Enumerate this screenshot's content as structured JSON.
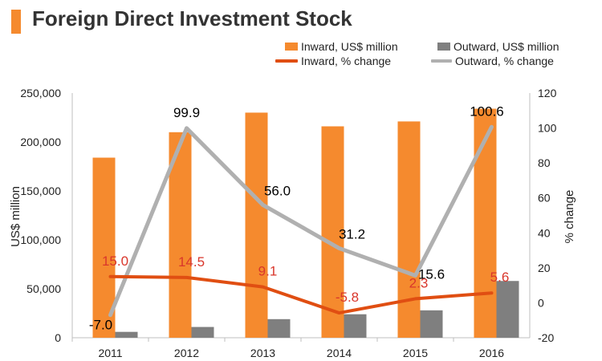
{
  "header": {
    "title": "Foreign Direct Investment Stock"
  },
  "colors": {
    "accent": "#F58A2E",
    "inward_bar": "#F58A2E",
    "outward_bar": "#7F7F7F",
    "inward_line": "#E04E12",
    "outward_line": "#B0B0B0",
    "inward_label": "#D9362B",
    "outward_label": "#000000"
  },
  "legend": {
    "inward_bar": "Inward, US$ million",
    "outward_bar": "Outward, US$ million",
    "inward_line": "Inward, % change",
    "outward_line": "Outward, % change"
  },
  "chart_data": {
    "type": "bar",
    "categories": [
      "2011",
      "2012",
      "2013",
      "2014",
      "2015",
      "2016"
    ],
    "series": [
      {
        "name": "Inward, US$ million",
        "type": "bar",
        "axis": "left",
        "values": [
          184000,
          210000,
          230000,
          216000,
          221000,
          234000
        ]
      },
      {
        "name": "Outward, US$ million",
        "type": "bar",
        "axis": "left",
        "values": [
          6000,
          11000,
          19000,
          24000,
          28000,
          58000
        ]
      },
      {
        "name": "Inward, % change",
        "type": "line",
        "axis": "right",
        "values": [
          15.0,
          14.5,
          9.1,
          -5.8,
          2.3,
          5.6
        ],
        "labels": [
          "15.0",
          "14.5",
          "9.1",
          "-5.8",
          "2.3",
          "5.6"
        ]
      },
      {
        "name": "Outward, % change",
        "type": "line",
        "axis": "right",
        "values": [
          -7.0,
          99.9,
          56.0,
          31.2,
          15.6,
          100.6
        ],
        "labels": [
          "-7.0",
          "99.9",
          "56.0",
          "31.2",
          "15.6",
          "100.6"
        ]
      }
    ],
    "ylabel": "US$ million",
    "y2label": "% change",
    "ylim": [
      0,
      250000
    ],
    "y2lim": [
      -20,
      120
    ],
    "yticks": [
      "0",
      "50,000",
      "100,000",
      "150,000",
      "200,000",
      "250,000"
    ],
    "y2ticks": [
      "-20",
      "0",
      "20",
      "40",
      "60",
      "80",
      "100",
      "120"
    ],
    "grid": false,
    "legend_position": "top-right"
  }
}
